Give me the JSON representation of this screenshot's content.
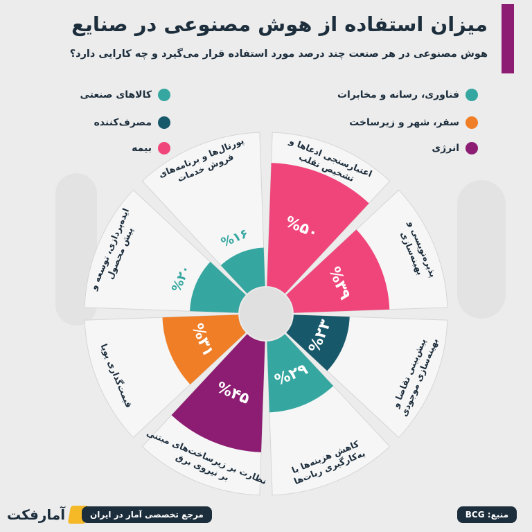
{
  "header": {
    "title": "میزان استفاده از هوش مصنوعی در صنایع",
    "subtitle": "هوش مصنوعی در هر صنعت چند درصد مورد استفاده قرار می‌گیرد و چه کارایی دارد؟"
  },
  "legend": [
    {
      "label": "فناوری، رسانه و مخابرات",
      "color": "#35a7a0"
    },
    {
      "label": "کالاهای صنعتی",
      "color": "#35a7a0"
    },
    {
      "label": "سفر، شهر و زیرساخت",
      "color": "#f07e27"
    },
    {
      "label": "مصرف‌کننده",
      "color": "#17586a"
    },
    {
      "label": "انرژی",
      "color": "#8d1d72"
    },
    {
      "label": "بیمه",
      "color": "#f0457a"
    }
  ],
  "chart_data": {
    "type": "radial-bar",
    "max_value": 50,
    "segments": [
      {
        "label": "اعتبارسنجی ادعاها و تشخیص تقلب",
        "value": 50,
        "display": "%۵۰",
        "industry": "بیمه",
        "color": "#f0457a"
      },
      {
        "label": "پذیره‌نویسی و بهینه‌سازی",
        "value": 39,
        "display": "%۳۹",
        "industry": "بیمه",
        "color": "#f0457a"
      },
      {
        "label": "پیش‌بینی تقاضا و بهینه‌سازی موجودی",
        "value": 23,
        "display": "%۲۳",
        "industry": "مصرف‌کننده",
        "color": "#17586a"
      },
      {
        "label": "کاهش هزینه‌ها با به‌کارگیری ربات‌ها",
        "value": 29,
        "display": "%۲۹",
        "industry": "کالاهای صنعتی",
        "color": "#35a7a0"
      },
      {
        "label": "نظارت بر زیرساخت‌های مبتنی بر نیروی برق",
        "value": 45,
        "display": "%۴۵",
        "industry": "انرژی",
        "color": "#8d1d72"
      },
      {
        "label": "قیمت‌گذاری پویا",
        "value": 31,
        "display": "%۳۱",
        "industry": "سفر، شهر و زیرساخت",
        "color": "#f07e27"
      },
      {
        "label": "ایده‌پردازی، توسعه و پیش محصول",
        "value": 20,
        "display": "%۲۰",
        "industry": "فناوری، رسانه و مخابرات",
        "color": "#35a7a0"
      },
      {
        "label": "پورتال‌ها و برنامه‌های فروش خدمات",
        "value": 16,
        "display": "%۱۶",
        "industry": "فناوری، رسانه و مخابرات",
        "color": "#35a7a0"
      }
    ]
  },
  "footer": {
    "brand": "آمارفکت",
    "tagline": "مرجع تخصصی آمار در ایران",
    "source": "منبع: BCG"
  }
}
